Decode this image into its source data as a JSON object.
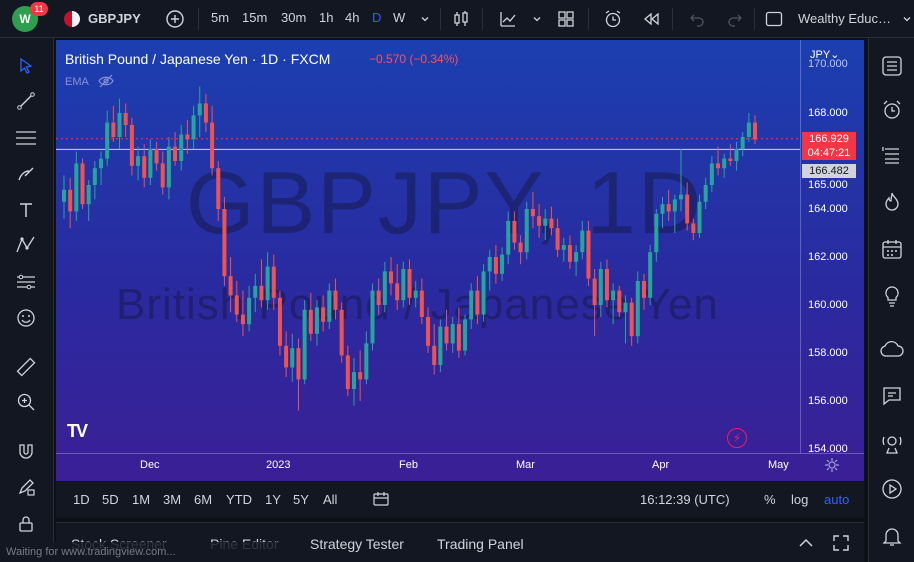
{
  "topbar": {
    "notifications": "11",
    "symbol": "GBPJPY",
    "intervals": [
      "5m",
      "15m",
      "30m",
      "1h",
      "4h",
      "D",
      "W"
    ],
    "active_interval": "D",
    "layout_name": "Wealthy Educ…"
  },
  "chart": {
    "title": "British Pound / Japanese Yen · 1D · FXCM",
    "change": "−0.570 (−0.34%)",
    "indicator": "EMA",
    "watermark_symbol": "GBPJPY, 1D",
    "watermark_name": "British Pound / Japanese Yen",
    "currency": "JPY",
    "tv_logo": "TV",
    "y_ticks": [
      "168.000",
      "166.000",
      "165.000",
      "164.000",
      "162.000",
      "160.000",
      "158.000",
      "156.000",
      "154.000"
    ],
    "y_partial_top": "170.000",
    "x_ticks": [
      "Dec",
      "2023",
      "Feb",
      "Mar",
      "Apr",
      "May"
    ],
    "last_price": "166.929",
    "countdown": "04:47:21",
    "crosshair_price": "166.482",
    "colors": {
      "up": "#26a69a",
      "down": "#ef5350",
      "bg_top": "#1b3fb0",
      "bg_bottom": "#3b1f96"
    }
  },
  "chart_data": {
    "type": "candlestick",
    "title": "British Pound / Japanese Yen · 1D · FXCM",
    "ylabel": "JPY",
    "ylim": [
      154,
      170
    ],
    "x_ticks": [
      "Dec",
      "2023",
      "Feb",
      "Mar",
      "Apr",
      "May"
    ],
    "grid": false,
    "last_price": 166.929,
    "crosshair_price": 166.482,
    "series": [
      {
        "name": "GBPJPY",
        "ohlc": [
          [
            164.3,
            165.4,
            163.6,
            164.8
          ],
          [
            164.8,
            165.3,
            163.2,
            163.9
          ],
          [
            163.9,
            166.4,
            163.5,
            165.9
          ],
          [
            165.9,
            166.1,
            164.0,
            164.2
          ],
          [
            164.2,
            165.2,
            163.5,
            165.0
          ],
          [
            165.0,
            166.0,
            164.4,
            165.7
          ],
          [
            165.7,
            166.4,
            165.0,
            166.1
          ],
          [
            166.1,
            168.1,
            165.8,
            167.6
          ],
          [
            167.6,
            168.3,
            166.8,
            167.0
          ],
          [
            167.0,
            168.6,
            166.5,
            168.0
          ],
          [
            168.0,
            168.4,
            167.0,
            167.5
          ],
          [
            167.5,
            167.8,
            165.4,
            165.8
          ],
          [
            165.8,
            166.6,
            165.2,
            166.2
          ],
          [
            166.2,
            166.7,
            164.9,
            165.3
          ],
          [
            165.3,
            166.9,
            165.0,
            166.5
          ],
          [
            166.5,
            166.8,
            165.6,
            165.9
          ],
          [
            165.9,
            166.4,
            164.6,
            164.9
          ],
          [
            164.9,
            167.0,
            164.4,
            166.6
          ],
          [
            166.6,
            167.2,
            165.8,
            166.0
          ],
          [
            166.0,
            167.5,
            165.6,
            167.1
          ],
          [
            167.1,
            167.7,
            166.3,
            166.9
          ],
          [
            166.9,
            168.3,
            166.5,
            167.9
          ],
          [
            167.9,
            169.1,
            167.0,
            168.4
          ],
          [
            168.4,
            168.8,
            167.2,
            167.6
          ],
          [
            167.6,
            168.3,
            165.4,
            165.7
          ],
          [
            165.7,
            166.0,
            163.5,
            164.0
          ],
          [
            164.0,
            164.5,
            160.8,
            161.2
          ],
          [
            161.2,
            162.0,
            159.7,
            160.4
          ],
          [
            160.4,
            161.0,
            159.3,
            159.6
          ],
          [
            159.6,
            160.6,
            158.7,
            159.2
          ],
          [
            159.2,
            160.8,
            158.9,
            160.3
          ],
          [
            160.3,
            161.3,
            159.7,
            160.8
          ],
          [
            160.8,
            161.9,
            159.9,
            160.2
          ],
          [
            160.2,
            162.2,
            159.8,
            161.6
          ],
          [
            161.6,
            162.1,
            159.8,
            160.3
          ],
          [
            160.3,
            160.6,
            157.9,
            158.3
          ],
          [
            158.3,
            158.9,
            157.0,
            157.4
          ],
          [
            157.4,
            158.8,
            156.8,
            158.2
          ],
          [
            158.2,
            158.6,
            155.6,
            156.9
          ],
          [
            156.9,
            160.2,
            156.7,
            159.8
          ],
          [
            159.8,
            160.5,
            158.5,
            158.8
          ],
          [
            158.8,
            160.2,
            158.3,
            159.9
          ],
          [
            159.9,
            160.4,
            158.9,
            159.3
          ],
          [
            159.3,
            160.9,
            159.0,
            160.6
          ],
          [
            160.6,
            161.1,
            159.4,
            159.8
          ],
          [
            159.8,
            160.1,
            157.6,
            157.9
          ],
          [
            157.9,
            158.3,
            156.2,
            156.5
          ],
          [
            156.5,
            157.8,
            155.8,
            157.2
          ],
          [
            157.2,
            158.1,
            156.0,
            156.9
          ],
          [
            156.9,
            158.9,
            156.7,
            158.4
          ],
          [
            158.4,
            160.9,
            158.1,
            160.6
          ],
          [
            160.6,
            161.1,
            159.6,
            160.0
          ],
          [
            160.0,
            161.8,
            159.7,
            161.4
          ],
          [
            161.4,
            162.0,
            160.4,
            160.9
          ],
          [
            160.9,
            161.7,
            159.8,
            160.2
          ],
          [
            160.2,
            161.8,
            159.9,
            161.5
          ],
          [
            161.5,
            161.9,
            160.0,
            160.3
          ],
          [
            160.3,
            161.0,
            159.9,
            160.6
          ],
          [
            160.6,
            161.1,
            159.2,
            159.5
          ],
          [
            159.5,
            159.9,
            158.0,
            158.3
          ],
          [
            158.3,
            159.2,
            157.1,
            157.5
          ],
          [
            157.5,
            159.4,
            157.2,
            159.1
          ],
          [
            159.1,
            159.8,
            158.1,
            158.4
          ],
          [
            158.4,
            159.5,
            158.0,
            159.2
          ],
          [
            159.2,
            159.9,
            157.8,
            158.1
          ],
          [
            158.1,
            159.6,
            157.9,
            159.4
          ],
          [
            159.4,
            160.9,
            159.0,
            160.6
          ],
          [
            160.6,
            161.2,
            159.2,
            159.6
          ],
          [
            159.6,
            161.7,
            159.3,
            161.4
          ],
          [
            161.4,
            162.3,
            160.6,
            162.0
          ],
          [
            162.0,
            162.5,
            160.9,
            161.3
          ],
          [
            161.3,
            162.4,
            161.0,
            162.1
          ],
          [
            162.1,
            163.9,
            161.7,
            163.5
          ],
          [
            163.5,
            163.9,
            162.3,
            162.6
          ],
          [
            162.6,
            162.9,
            161.7,
            162.2
          ],
          [
            162.2,
            164.3,
            161.9,
            164.0
          ],
          [
            164.0,
            164.7,
            163.2,
            163.7
          ],
          [
            163.7,
            164.2,
            162.8,
            163.3
          ],
          [
            163.3,
            164.0,
            162.7,
            163.6
          ],
          [
            163.6,
            164.1,
            162.9,
            163.2
          ],
          [
            163.2,
            163.6,
            162.0,
            162.3
          ],
          [
            162.3,
            162.8,
            161.8,
            162.5
          ],
          [
            162.5,
            162.9,
            161.5,
            161.8
          ],
          [
            161.8,
            162.5,
            161.2,
            162.2
          ],
          [
            162.2,
            163.5,
            161.9,
            163.1
          ],
          [
            163.1,
            163.5,
            160.8,
            161.1
          ],
          [
            161.1,
            161.5,
            158.7,
            160.0
          ],
          [
            160.0,
            161.8,
            159.5,
            161.5
          ],
          [
            161.5,
            161.9,
            159.9,
            160.2
          ],
          [
            160.2,
            160.9,
            159.2,
            160.6
          ],
          [
            160.6,
            160.8,
            159.5,
            159.7
          ],
          [
            159.7,
            160.4,
            158.4,
            160.1
          ],
          [
            160.1,
            160.3,
            158.3,
            158.7
          ],
          [
            158.7,
            161.4,
            158.4,
            161.0
          ],
          [
            161.0,
            161.3,
            159.8,
            160.3
          ],
          [
            160.3,
            162.5,
            160.0,
            162.2
          ],
          [
            162.2,
            164.0,
            161.8,
            163.8
          ],
          [
            163.8,
            164.5,
            163.2,
            164.2
          ],
          [
            164.2,
            164.8,
            163.5,
            163.9
          ],
          [
            163.9,
            164.6,
            163.0,
            164.4
          ],
          [
            164.4,
            166.5,
            163.9,
            164.6
          ],
          [
            164.6,
            165.1,
            163.1,
            163.4
          ],
          [
            163.4,
            163.6,
            162.7,
            163.0
          ],
          [
            163.0,
            164.6,
            162.8,
            164.3
          ],
          [
            164.3,
            165.3,
            164.0,
            165.0
          ],
          [
            165.0,
            166.2,
            164.7,
            165.9
          ],
          [
            165.9,
            166.6,
            165.4,
            165.7
          ],
          [
            165.7,
            166.3,
            165.3,
            166.1
          ],
          [
            166.1,
            166.7,
            165.8,
            166.0
          ],
          [
            166.0,
            166.8,
            165.6,
            166.5
          ],
          [
            166.5,
            167.2,
            166.2,
            167.0
          ],
          [
            167.0,
            168.0,
            166.8,
            167.6
          ],
          [
            167.6,
            167.9,
            166.7,
            166.9
          ]
        ]
      }
    ]
  },
  "rangebar": {
    "ranges": [
      "1D",
      "5D",
      "1M",
      "3M",
      "6M",
      "YTD",
      "1Y",
      "5Y",
      "All"
    ],
    "clock": "16:12:39 (UTC)",
    "percent": "%",
    "log": "log",
    "auto": "auto"
  },
  "bottombar": {
    "tabs": [
      "Stock Screener",
      "Pine Editor",
      "Strategy Tester",
      "Trading Panel"
    ],
    "status": "Waiting for www.tradingview.com..."
  }
}
